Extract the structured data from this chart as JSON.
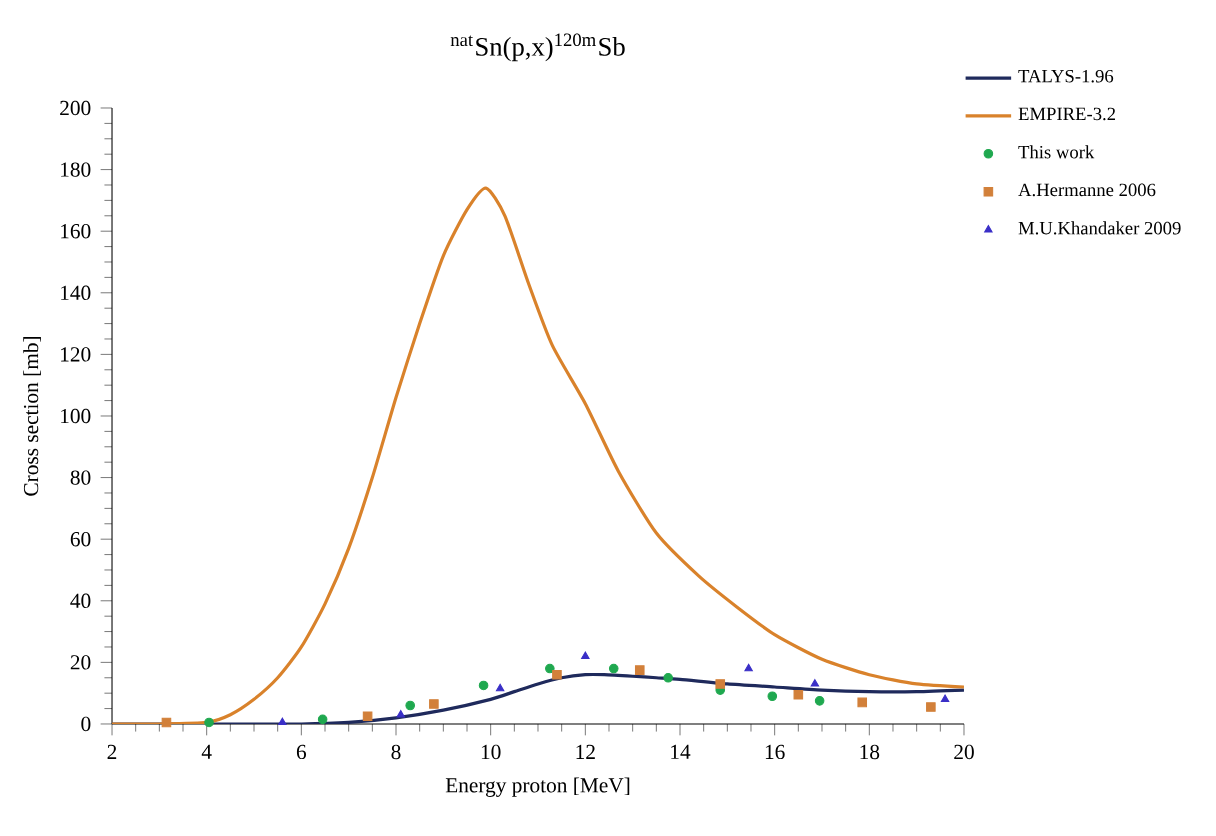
{
  "chart_data": {
    "type": "line",
    "title": "$^{nat}$Sn(p,x)$^{120m}$Sb",
    "xlabel": "Energy proton [MeV]",
    "ylabel": "Cross section [mb]",
    "xlim": [
      2,
      20
    ],
    "ylim": [
      0,
      200
    ],
    "xticks": [
      2,
      4,
      6,
      8,
      10,
      12,
      14,
      16,
      18,
      20
    ],
    "yticks": [
      0,
      20,
      40,
      60,
      80,
      100,
      120,
      140,
      160,
      180,
      200
    ],
    "grid": false,
    "legend": "top right",
    "series": [
      {
        "name": "TALYS-1.96",
        "marker": "none",
        "color": "#1f2a5c",
        "x": [
          2,
          4,
          6,
          7,
          8,
          9,
          10,
          10.5,
          11,
          11.5,
          12,
          12.4,
          13,
          13.5,
          14,
          15,
          16,
          17,
          18,
          19,
          20
        ],
        "values": [
          0,
          0,
          0,
          0.5,
          2,
          4.5,
          8,
          10.5,
          13,
          15,
          16,
          16,
          15.5,
          15,
          14.5,
          13,
          12,
          11,
          10.5,
          10.5,
          11
        ]
      },
      {
        "name": "EMPIRE-3.2",
        "marker": "none",
        "color": "#d9822b",
        "x": [
          2,
          3,
          4,
          4.5,
          5,
          5.5,
          6,
          6.5,
          7,
          7.5,
          8,
          8.5,
          9,
          9.5,
          9.9,
          10.3,
          10.8,
          11.3,
          12,
          12.7,
          13.5,
          14.4,
          15.2,
          16,
          17,
          18,
          19,
          20
        ],
        "values": [
          0,
          0,
          0.5,
          3,
          8,
          15,
          25,
          39,
          57,
          80,
          106,
          130,
          152,
          167,
          174,
          165,
          143,
          123,
          104,
          82,
          62,
          48,
          38,
          29,
          21,
          16,
          13,
          12
        ]
      },
      {
        "name": "This work",
        "type": "scatter",
        "marker": "circle",
        "color": "#1fa84f",
        "x": [
          4.05,
          6.45,
          8.3,
          9.85,
          11.25,
          12.6,
          13.75,
          14.85,
          15.95,
          16.95
        ],
        "values": [
          0.5,
          1.5,
          6,
          12.5,
          18,
          18,
          15,
          11,
          9,
          7.5
        ]
      },
      {
        "name": "A.Hermanne 2006",
        "type": "scatter",
        "marker": "square",
        "color": "#d2803a",
        "x": [
          3.15,
          7.4,
          8.8,
          11.4,
          13.15,
          14.85,
          16.5,
          17.85,
          19.3
        ],
        "values": [
          0.5,
          2.5,
          6.5,
          16,
          17.5,
          13,
          9.5,
          7,
          5.5
        ]
      },
      {
        "name": "M.U.Khandaker 2009",
        "type": "scatter",
        "marker": "triangle",
        "color": "#3a2fc7",
        "x": [
          5.6,
          8.1,
          10.2,
          12,
          15.45,
          16.85,
          19.6
        ],
        "values": [
          0.5,
          3,
          11.5,
          22,
          18,
          13,
          8
        ]
      }
    ]
  }
}
